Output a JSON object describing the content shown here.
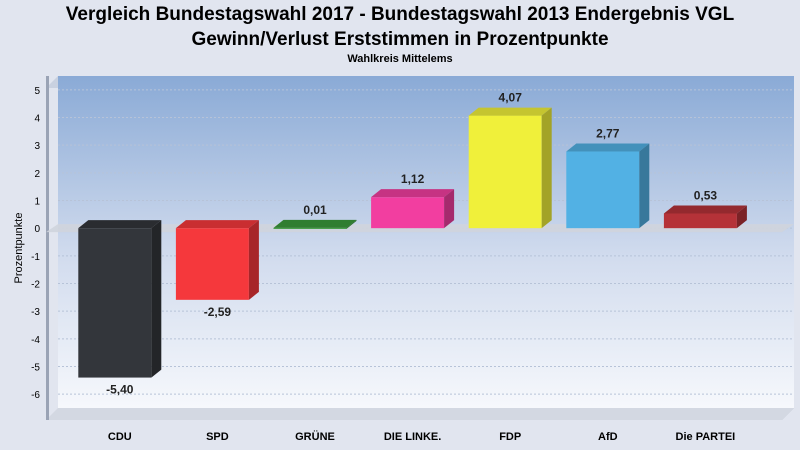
{
  "chart_data": {
    "type": "bar",
    "title": "Vergleich Bundestagswahl 2017 - Bundestagswahl 2013 Endergebnis VGL",
    "title2": "Gewinn/Verlust Erststimmen in Prozentpunkte",
    "subtitle": "Wahlkreis Mittelems",
    "ylabel": "Prozentpunkte",
    "xlabel": "",
    "ylim": [
      -6.5,
      5.5
    ],
    "yticks": [
      5,
      4,
      3,
      2,
      1,
      0,
      -1,
      -2,
      -3,
      -4,
      -5,
      -6
    ],
    "grid": true,
    "categories": [
      "CDU",
      "SPD",
      "GRÜNE",
      "DIE LINKE.",
      "FDP",
      "AfD",
      "Die PARTEI"
    ],
    "values": [
      -5.4,
      -2.59,
      0.01,
      1.12,
      4.07,
      2.77,
      0.53
    ],
    "value_labels": [
      "-5,40",
      "-2,59",
      "0,01",
      "1,12",
      "4,07",
      "2,77",
      "0,53"
    ],
    "colors": [
      "#33363b",
      "#f5383c",
      "#3a9a3a",
      "#f23ea0",
      "#f0f03a",
      "#52b1e4",
      "#b53238"
    ]
  }
}
